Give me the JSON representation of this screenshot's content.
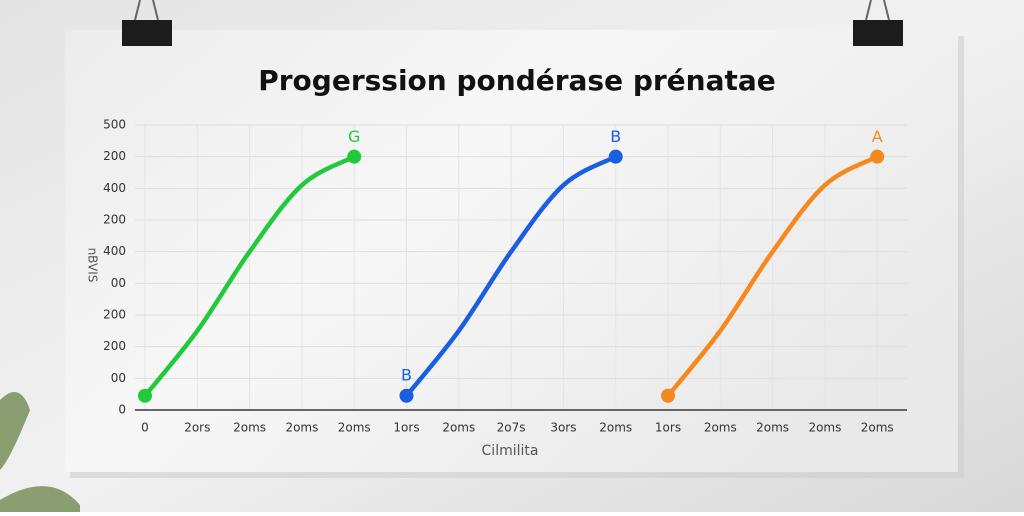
{
  "chart_data": {
    "type": "line",
    "title": "Progerssion pondérase prénatae",
    "x_label": "Cilmilita",
    "y_label": "nBVIS",
    "categories": [
      "0",
      "2ors",
      "2oms",
      "2oms",
      "2oms",
      "1ors",
      "2oms",
      "2o7s",
      "3ors",
      "2oms",
      "1ors",
      "2oms",
      "2oms",
      "2oms",
      "2oms"
    ],
    "series": [
      {
        "name": "G",
        "color": "#22c93a",
        "values": [
          0.45,
          2.5,
          5.0,
          7.1,
          8.0,
          null,
          null,
          null,
          null,
          null,
          null,
          null,
          null,
          null,
          null
        ]
      },
      {
        "name": "B",
        "color": "#1a5fe0",
        "values": [
          null,
          null,
          null,
          null,
          null,
          0.45,
          2.5,
          5.0,
          7.1,
          8.0,
          null,
          null,
          null,
          null,
          null
        ]
      },
      {
        "name": "A",
        "color": "#f5891f",
        "values": [
          null,
          null,
          null,
          null,
          null,
          null,
          null,
          null,
          null,
          null,
          0.45,
          2.5,
          5.0,
          7.1,
          8.0
        ]
      }
    ],
    "annotations": [
      {
        "text": "B",
        "series": 1,
        "index": 5
      }
    ],
    "ylim": [
      0,
      9
    ],
    "yticks": [
      {
        "value": 0,
        "label": "0"
      },
      {
        "value": 1,
        "label": "00"
      },
      {
        "value": 2,
        "label": "200"
      },
      {
        "value": 3,
        "label": "200"
      },
      {
        "value": 4,
        "label": "00"
      },
      {
        "value": 5,
        "label": "400"
      },
      {
        "value": 6,
        "label": "200"
      },
      {
        "value": 7,
        "label": "400"
      },
      {
        "value": 8,
        "label": "200"
      },
      {
        "value": 9,
        "label": "500"
      }
    ],
    "grid": true
  }
}
